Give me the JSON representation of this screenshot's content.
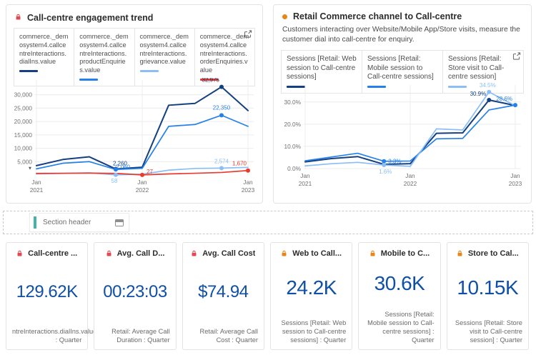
{
  "panels": {
    "left": {
      "title": "Call-centre engagement trend",
      "lock_color": "#e34850"
    },
    "right": {
      "title": "Retail Commerce channel to Call-centre",
      "marker_color": "#e68619",
      "description": "Customers interacting over Website/Mobile App/Store visits, measure the customer dial into call-centre for enquiry."
    }
  },
  "chart_data": [
    {
      "type": "line",
      "title": "Call-centre engagement trend",
      "ylim": [
        0,
        35000
      ],
      "grid": true,
      "y_axis_caret": true,
      "y_ticks": [
        {
          "v": 5000,
          "label": "5,000"
        },
        {
          "v": 10000,
          "label": "10,000"
        },
        {
          "v": 15000,
          "label": "15,000"
        },
        {
          "v": 20000,
          "label": "20,000"
        },
        {
          "v": 25000,
          "label": "25,000"
        },
        {
          "v": 30000,
          "label": "30,000"
        }
      ],
      "x_ticks": [
        {
          "i": 0,
          "lines": [
            "Jan",
            "2021"
          ]
        },
        {
          "i": 4,
          "lines": [
            "Jan",
            "2022"
          ]
        },
        {
          "i": 8,
          "lines": [
            "Jan",
            "2023"
          ]
        }
      ],
      "grid_x": [
        0,
        4,
        8
      ],
      "series": [
        {
          "name": "commerce._demosystem4.callcentreInteractions.dialIns.value",
          "color": "#14407f",
          "values": [
            3500,
            5800,
            6800,
            2260,
            2900,
            26100,
            26800,
            32975,
            24100
          ],
          "points": [
            {
              "i": 3,
              "label": "2,260",
              "dx": 6,
              "dy": -5,
              "anchor": "middle"
            },
            {
              "i": 7,
              "label": "32,975",
              "dx": -3,
              "dy": -7,
              "anchor": "end"
            }
          ]
        },
        {
          "name": "commerce._demosystem4.callcentreInteractions.productEnquiries.value",
          "color": "#2680eb",
          "values": [
            2300,
            4400,
            5000,
            2060,
            2500,
            18200,
            18900,
            22350,
            18200
          ],
          "points": [
            {
              "i": 3,
              "label": "2,060",
              "dx": 10,
              "dy": -1,
              "anchor": "middle"
            },
            {
              "i": 7,
              "label": "22,350",
              "dx": 0,
              "dy": -8,
              "anchor": "middle"
            }
          ]
        },
        {
          "name": "commerce._demosystem4.callcentreInteractions.grievance.value",
          "color": "#8abef5",
          "values": [
            400,
            600,
            800,
            58,
            300,
            1800,
            2450,
            2574,
            2850
          ],
          "points": [
            {
              "i": 3,
              "label": "58",
              "dx": -2,
              "dy": 11,
              "anchor": "middle"
            },
            {
              "i": 7,
              "label": "2,574",
              "dx": 0,
              "dy": -7,
              "anchor": "middle"
            }
          ]
        },
        {
          "name": "commerce._demosystem4.callcentreInteractions.orderEnquiries.value",
          "color": "#ea3a2d",
          "values": [
            600,
            650,
            700,
            600,
            27,
            400,
            650,
            950,
            1670
          ],
          "points": [
            {
              "i": 4,
              "label": "27",
              "dx": 6,
              "dy": -2,
              "anchor": "start"
            },
            {
              "i": 8,
              "label": "1,670",
              "dx": -2,
              "dy": -7,
              "anchor": "end"
            }
          ]
        }
      ]
    },
    {
      "type": "line",
      "title": "Retail Commerce channel to Call-centre",
      "ylim": [
        0,
        37
      ],
      "grid": true,
      "y_axis_caret": false,
      "y_ticks": [
        {
          "v": 0,
          "label": "0.0%"
        },
        {
          "v": 10,
          "label": "10.0%"
        },
        {
          "v": 20,
          "label": "20.0%"
        },
        {
          "v": 30,
          "label": "30.0%"
        }
      ],
      "x_ticks": [
        {
          "i": 0,
          "lines": [
            "Jan",
            "2021"
          ]
        },
        {
          "i": 4,
          "lines": [
            "Jan",
            "2022"
          ]
        },
        {
          "i": 8,
          "lines": [
            "Jan",
            "2023"
          ]
        }
      ],
      "grid_x": [
        0,
        4,
        8
      ],
      "series": [
        {
          "name": "Sessions [Retail: Web session to Call-centre sessions]",
          "color": "#14407f",
          "values": [
            3.0,
            4.5,
            5.4,
            1.9,
            2.2,
            15.9,
            16.1,
            30.9,
            28.4
          ],
          "points": [
            {
              "i": 7,
              "label": "30.9%",
              "dx": -4,
              "dy": -6,
              "anchor": "end"
            }
          ]
        },
        {
          "name": "Sessions [Retail: Mobile session to Call-centre sessions]",
          "color": "#2680eb",
          "values": [
            3.5,
            5.2,
            6.9,
            3.3,
            3.4,
            13.4,
            13.6,
            26.4,
            28.6
          ],
          "points": [
            {
              "i": 3,
              "label": "3.3%",
              "dx": 6,
              "dy": 3,
              "anchor": "start"
            },
            {
              "i": 8,
              "label": "28.6%",
              "dx": -4,
              "dy": -6,
              "anchor": "end"
            }
          ]
        },
        {
          "name": "Sessions [Retail: Store visit to Call-centre session]",
          "color": "#8abef5",
          "values": [
            1.2,
            2.2,
            2.8,
            1.6,
            1.0,
            17.9,
            17.4,
            34.5,
            28.3
          ],
          "points": [
            {
              "i": 3,
              "label": "1.6%",
              "dx": 2,
              "dy": 12,
              "anchor": "middle"
            },
            {
              "i": 7,
              "label": "34.5%",
              "dx": -2,
              "dy": -7,
              "anchor": "middle"
            }
          ]
        }
      ]
    }
  ],
  "section_header": {
    "label": "Section header",
    "accent_color": "#44b3aa"
  },
  "kpi_cards": [
    {
      "lock_color": "#e34850",
      "title": "Call-centre ...",
      "value": "129.62K",
      "caption": "ntreInteractions.dialIns.value : Quarter"
    },
    {
      "lock_color": "#e34850",
      "title": "Avg. Call D...",
      "value": "00:23:03",
      "caption": "Retail: Average Call Duration : Quarter"
    },
    {
      "lock_color": "#e34850",
      "title": "Avg. Call Cost",
      "value": "$74.94",
      "caption": "Retail: Average Call Cost : Quarter"
    },
    {
      "lock_color": "#e68619",
      "title": "Web to Call...",
      "value": "24.2K",
      "caption": "Sessions [Retail: Web session to Call-centre sessions] : Quarter"
    },
    {
      "lock_color": "#e68619",
      "title": "Mobile to C...",
      "value": "30.6K",
      "caption": "Sessions [Retail: Mobile session to Call-centre sessions] : Quarter"
    },
    {
      "lock_color": "#e68619",
      "title": "Store to Cal...",
      "value": "10.15K",
      "caption": "Sessions [Retail: Store visit to Call-centre session] : Quarter"
    }
  ]
}
